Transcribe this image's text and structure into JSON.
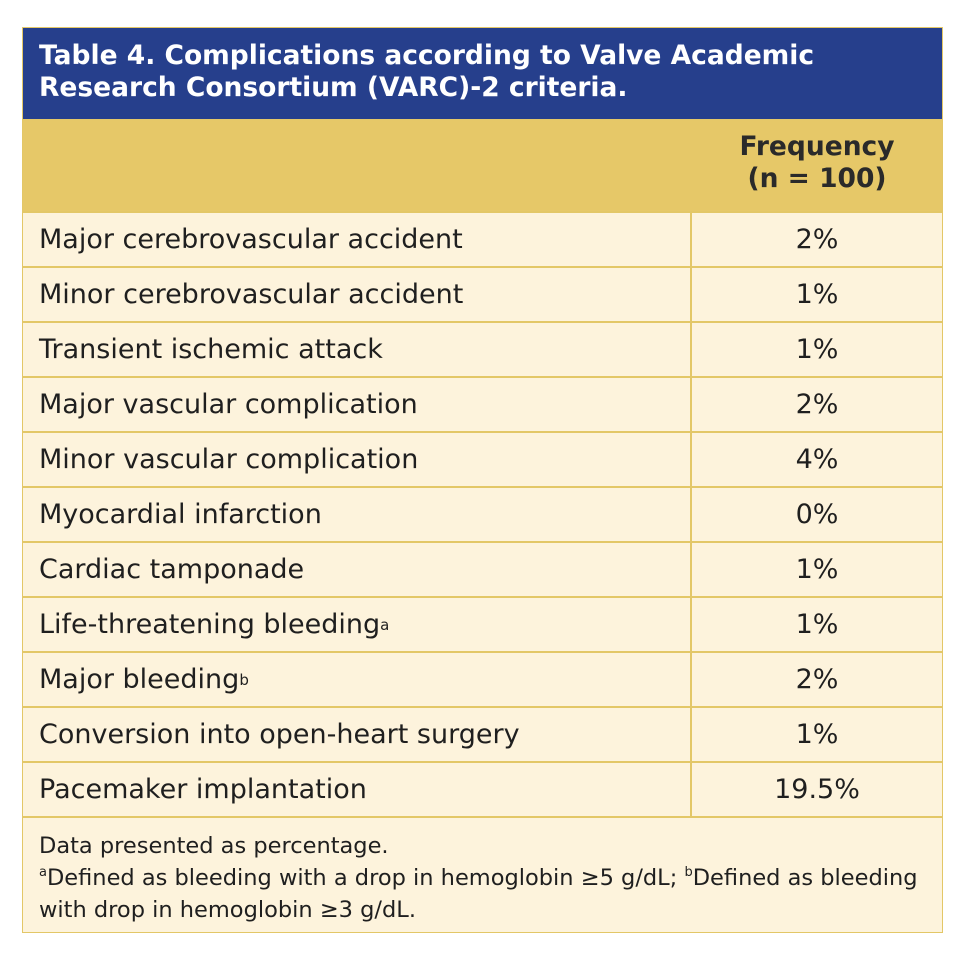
{
  "title": "Table 4. Complications according to Valve Academic Research Consortium (VARC)-2 criteria.",
  "table": {
    "header": [
      "Frequency",
      "(n = 100)"
    ],
    "rows": [
      {
        "label": "Major cerebrovascular accident",
        "value": "2%"
      },
      {
        "label": "Minor cerebrovascular accident",
        "value": "1%"
      },
      {
        "label": "Transient ischemic attack",
        "value": "1%"
      },
      {
        "label": "Major vascular complication",
        "value": "2%"
      },
      {
        "label": "Minor vascular complication",
        "value": "4%"
      },
      {
        "label": "Myocardial infarction",
        "value": "0%"
      },
      {
        "label": "Cardiac tamponade",
        "value": "1%"
      },
      {
        "label": "Life-threatening bleeding",
        "sup": "a",
        "value": "1%"
      },
      {
        "label": "Major bleeding",
        "sup": "b",
        "value": "2%"
      },
      {
        "label": "Conversion into open-heart surgery",
        "value": "1%"
      },
      {
        "label": "Pacemaker implantation",
        "value": "19.5%"
      }
    ]
  },
  "footer": {
    "intro": "Data presented as percentage.",
    "notes": [
      {
        "mark": "a",
        "text": "Defined as bleeding with a drop in hemoglobin ≥5 g/dL;"
      },
      {
        "mark": "b",
        "text": "Defined as bleeding with drop in hemoglobin ≥3 g/dL."
      }
    ]
  }
}
